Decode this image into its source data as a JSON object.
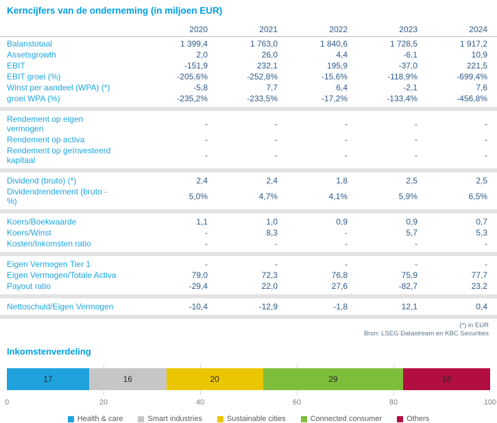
{
  "header": {
    "title": "Kerncijfers van de onderneming (in miljoen EUR)"
  },
  "table": {
    "years": [
      "2020",
      "2021",
      "2022",
      "2023",
      "2024"
    ],
    "sections": [
      {
        "rows": [
          {
            "label": "Balanstotaal",
            "values": [
              "1 399,4",
              "1 763,0",
              "1 840,6",
              "1 728,5",
              "1 917,2"
            ]
          },
          {
            "label": "Assetsgrowth",
            "values": [
              "2,0",
              "26,0",
              "4,4",
              "-6,1",
              "10,9"
            ]
          },
          {
            "label": "EBIT",
            "values": [
              "-151,9",
              "232,1",
              "195,9",
              "-37,0",
              "221,5"
            ]
          },
          {
            "label": "EBIT groei (%)",
            "values": [
              "-205,6%",
              "-252,8%",
              "-15,6%",
              "-118,9%",
              "-699,4%"
            ]
          },
          {
            "label": "Winst per aandeel (WPA) (*)",
            "values": [
              "-5,8",
              "7,7",
              "6,4",
              "-2,1",
              "7,6"
            ]
          },
          {
            "label": "groei WPA (%)",
            "values": [
              "-235,2%",
              "-233,5%",
              "-17,2%",
              "-133,4%",
              "-456,8%"
            ]
          }
        ]
      },
      {
        "rows": [
          {
            "label": "Rendement op eigen\nvermogen",
            "values": [
              "-",
              "-",
              "-",
              "-",
              "-"
            ]
          },
          {
            "label": "Rendement op activa",
            "values": [
              "-",
              "-",
              "-",
              "-",
              "-"
            ]
          },
          {
            "label": "Rendement op geïnvesteerd\nkapitaal",
            "values": [
              "-",
              "-",
              "-",
              "-",
              "-"
            ]
          }
        ]
      },
      {
        "rows": [
          {
            "label": "Dividend (bruto) (*)",
            "values": [
              "2,4",
              "2,4",
              "1,8",
              "2,5",
              "2,5"
            ]
          },
          {
            "label": "Dividendrendement (bruto -\n%)",
            "values": [
              "5,0%",
              "4,7%",
              "4,1%",
              "5,9%",
              "6,5%"
            ]
          }
        ]
      },
      {
        "rows": [
          {
            "label": "Koers/Boekwaarde",
            "values": [
              "1,1",
              "1,0",
              "0,9",
              "0,9",
              "0,7"
            ]
          },
          {
            "label": "Koers/Winst",
            "values": [
              "-",
              "8,3",
              "-",
              "5,7",
              "5,3"
            ]
          },
          {
            "label": "Kosten/Inkomsten ratio",
            "values": [
              "-",
              "-",
              "-",
              "-",
              "-"
            ]
          }
        ]
      },
      {
        "rows": [
          {
            "label": "Eigen Vermogen Tier 1",
            "values": [
              "-",
              "-",
              "-",
              "-",
              "-"
            ]
          },
          {
            "label": "Eigen Vermogen/Totale Activa",
            "values": [
              "79,0",
              "72,3",
              "76,8",
              "75,9",
              "77,7"
            ]
          },
          {
            "label": "Payout ratio",
            "values": [
              "-29,4",
              "22,0",
              "27,6",
              "-82,7",
              "23,2"
            ]
          }
        ]
      },
      {
        "rows": [
          {
            "label": "Nettoschuld/Eigen Vermogen",
            "values": [
              "-10,4",
              "-12,9",
              "-1,8",
              "12,1",
              "0,4"
            ]
          }
        ]
      }
    ],
    "footnote_unit": "(*) in EUR",
    "source": "Bron: LSEG Datastream en KBC Securities"
  },
  "chart_data": {
    "type": "bar",
    "stacked": true,
    "orientation": "horizontal",
    "title": "Inkomstenverdeling",
    "series": [
      {
        "name": "Health & care",
        "value": 17,
        "color": "#1fa1dc"
      },
      {
        "name": "Smart industries",
        "value": 16,
        "color": "#c6c6c6"
      },
      {
        "name": "Sustainable cities",
        "value": 20,
        "color": "#eac600"
      },
      {
        "name": "Connected consumer",
        "value": 29,
        "color": "#7fbe3b"
      },
      {
        "name": "Others",
        "value": 18,
        "color": "#b30e41"
      }
    ],
    "xlim": [
      0,
      100
    ],
    "xticks": [
      0,
      20,
      40,
      60,
      80,
      100
    ],
    "grid": true,
    "legend_position": "bottom"
  },
  "colors": {
    "accent_blue": "#009fe3",
    "label_blue": "#1ca6df",
    "value_navy": "#2d5987",
    "separator_gray": "#e3e3e3"
  }
}
